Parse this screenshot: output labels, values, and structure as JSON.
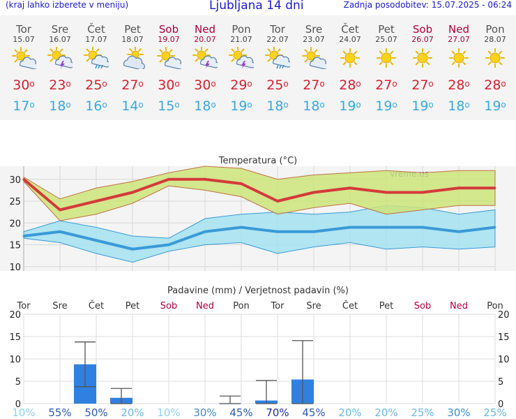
{
  "header": {
    "left_note": "(kraj lahko izberete v meniju)",
    "title": "Ljubljana 14 dni",
    "updated": "Zadnja posodobitev: 15.07.2025 - 06:24"
  },
  "days": [
    {
      "name": "Tor",
      "date": "15.07",
      "icon": "sun-cloud-icon",
      "tmax": "30",
      "tmin": "17",
      "weekend": false
    },
    {
      "name": "Sre",
      "date": "16.07",
      "icon": "storm-icon",
      "tmax": "23",
      "tmin": "18",
      "weekend": false
    },
    {
      "name": "Čet",
      "date": "17.07",
      "icon": "sun-rain-icon",
      "tmax": "25",
      "tmin": "16",
      "weekend": false
    },
    {
      "name": "Pet",
      "date": "18.07",
      "icon": "cloud-sun-icon",
      "tmax": "27",
      "tmin": "14",
      "weekend": false
    },
    {
      "name": "Sob",
      "date": "19.07",
      "icon": "sun-cloud-icon",
      "tmax": "30",
      "tmin": "15",
      "weekend": true
    },
    {
      "name": "Ned",
      "date": "20.07",
      "icon": "storm-icon",
      "tmax": "30",
      "tmin": "18",
      "weekend": true
    },
    {
      "name": "Pon",
      "date": "21.07",
      "icon": "storm-icon",
      "tmax": "29",
      "tmin": "19",
      "weekend": false
    },
    {
      "name": "Tor",
      "date": "22.07",
      "icon": "sun-rain-icon",
      "tmax": "25",
      "tmin": "18",
      "weekend": false
    },
    {
      "name": "Sre",
      "date": "23.07",
      "icon": "sun-cloud-icon",
      "tmax": "27",
      "tmin": "18",
      "weekend": false
    },
    {
      "name": "Čet",
      "date": "24.07",
      "icon": "sun-icon",
      "tmax": "28",
      "tmin": "19",
      "weekend": false
    },
    {
      "name": "Pet",
      "date": "25.07",
      "icon": "sun-icon",
      "tmax": "27",
      "tmin": "19",
      "weekend": false
    },
    {
      "name": "Sob",
      "date": "26.07",
      "icon": "sun-icon",
      "tmax": "27",
      "tmin": "19",
      "weekend": true
    },
    {
      "name": "Ned",
      "date": "27.07",
      "icon": "sun-icon",
      "tmax": "28",
      "tmin": "18",
      "weekend": true
    },
    {
      "name": "Pon",
      "date": "28.07",
      "icon": "sun-icon",
      "tmax": "28",
      "tmin": "19",
      "weekend": false
    }
  ],
  "chart_data": [
    {
      "type": "line",
      "title": "Temperatura (°C)",
      "watermark": "vreme.us",
      "ylim": [
        9,
        33
      ],
      "yticks": [
        10,
        15,
        20,
        25,
        30
      ],
      "grid": true,
      "series": [
        {
          "name": "tmax",
          "color": "#d43a3a",
          "values": [
            30,
            23,
            25,
            27,
            30,
            30,
            29,
            25,
            27,
            28,
            27,
            27,
            28,
            28
          ]
        },
        {
          "name": "tmax_band_upper",
          "color": "#c8e07a",
          "values": [
            30.5,
            25.5,
            28,
            29.5,
            31.5,
            33,
            32.5,
            30,
            31,
            31.5,
            32,
            31.5,
            32,
            32
          ]
        },
        {
          "name": "tmax_band_lower",
          "color": "#c8e07a",
          "values": [
            29.5,
            20.5,
            22,
            24.5,
            28.5,
            27.5,
            26,
            22,
            23.5,
            24.5,
            22,
            23,
            24,
            24
          ]
        },
        {
          "name": "tmin",
          "color": "#3a9ad8",
          "values": [
            17,
            18,
            16,
            14,
            15,
            18,
            19,
            18,
            18,
            19,
            19,
            19,
            18,
            19
          ]
        },
        {
          "name": "tmin_band_upper",
          "color": "#9fe0f0",
          "values": [
            18,
            20.5,
            19,
            17,
            16.5,
            21,
            22,
            22.5,
            22,
            22.5,
            24,
            23.5,
            22,
            23
          ]
        },
        {
          "name": "tmin_band_lower",
          "color": "#9fe0f0",
          "values": [
            16.5,
            15.5,
            13,
            11,
            13.5,
            15,
            15.5,
            13,
            14.5,
            15.5,
            14,
            14.5,
            14,
            14.5
          ]
        }
      ]
    },
    {
      "type": "bar",
      "title": "Padavine (mm) / Verjetnost padavin (%)",
      "categories": [
        "Tor",
        "Sre",
        "Čet",
        "Pet",
        "Sob",
        "Ned",
        "Pon",
        "Tor",
        "Sre",
        "Čet",
        "Pet",
        "Sob",
        "Ned",
        "Pon"
      ],
      "weekend": [
        false,
        false,
        false,
        false,
        true,
        true,
        false,
        false,
        false,
        false,
        false,
        true,
        true,
        false
      ],
      "ylim": [
        0,
        20
      ],
      "yticks": [
        0,
        5,
        10,
        15,
        20
      ],
      "values": [
        0,
        8.8,
        1.3,
        0,
        0,
        0.1,
        0.7,
        5.4,
        0,
        0,
        0,
        0,
        0,
        0
      ],
      "error_low": [
        null,
        3.8,
        0,
        null,
        null,
        0,
        0,
        0,
        null,
        null,
        null,
        null,
        null,
        null
      ],
      "error_high": [
        null,
        13.8,
        3.4,
        null,
        null,
        1.7,
        5.2,
        14.1,
        null,
        null,
        null,
        null,
        null,
        null
      ],
      "probability": [
        "10%",
        "55%",
        "50%",
        "20%",
        "10%",
        "30%",
        "45%",
        "70%",
        "45%",
        "20%",
        "20%",
        "25%",
        "30%",
        "25%"
      ]
    }
  ]
}
